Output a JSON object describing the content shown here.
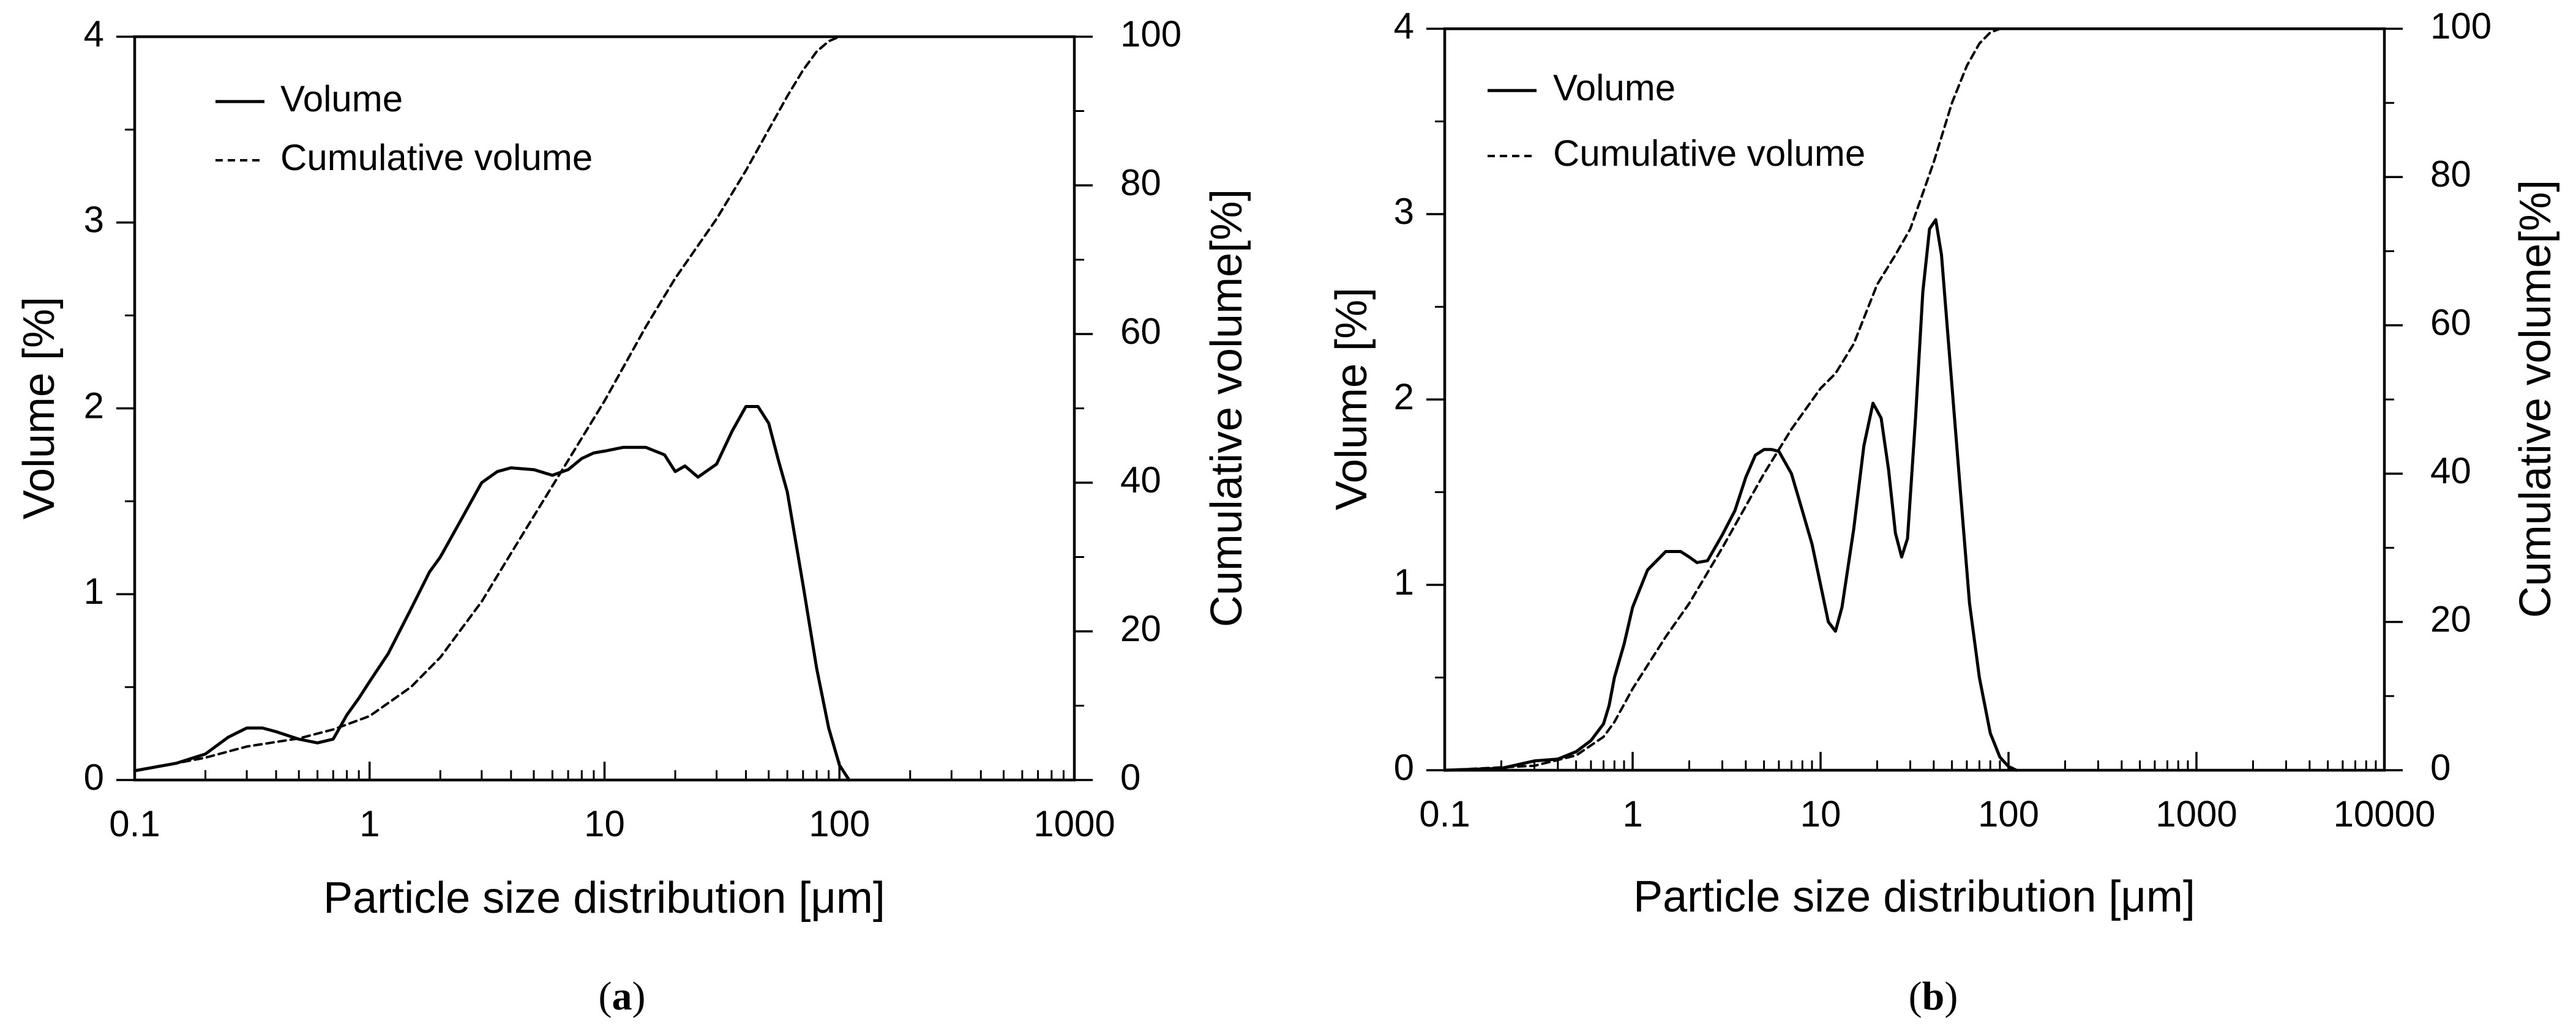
{
  "chart_data": [
    {
      "id": "a",
      "type": "line",
      "panel_label": "a",
      "xlabel": "Particle size distribution [μm]",
      "ylabel": "Volume [%]",
      "y2label": "Cumulative volume[%]",
      "xscale": "log",
      "xlim": [
        0.1,
        1000
      ],
      "ylim": [
        0,
        4
      ],
      "y2lim": [
        0,
        100
      ],
      "x_ticks": [
        "0.1",
        "1",
        "10",
        "100",
        "1000"
      ],
      "y_ticks": [
        "0",
        "1",
        "2",
        "3",
        "4"
      ],
      "y2_ticks": [
        "0",
        "20",
        "40",
        "60",
        "80",
        "100"
      ],
      "legend": {
        "position": "top-left",
        "entries": [
          "Volume",
          "Cumulative volume"
        ]
      },
      "series": [
        {
          "name": "Volume",
          "axis": "left",
          "style": "solid",
          "x": [
            0.1,
            0.15,
            0.2,
            0.25,
            0.3,
            0.35,
            0.4,
            0.5,
            0.6,
            0.7,
            0.8,
            0.9,
            1.0,
            1.2,
            1.5,
            1.8,
            2.0,
            2.5,
            3.0,
            3.5,
            4.0,
            5.0,
            6.0,
            7.0,
            8.0,
            9.0,
            10,
            12,
            15,
            18,
            20,
            22,
            25,
            30,
            35,
            40,
            45,
            50,
            55,
            60,
            70,
            80,
            90,
            100,
            110
          ],
          "values": [
            0.05,
            0.09,
            0.14,
            0.23,
            0.28,
            0.28,
            0.26,
            0.22,
            0.2,
            0.22,
            0.35,
            0.44,
            0.53,
            0.68,
            0.92,
            1.12,
            1.2,
            1.42,
            1.6,
            1.66,
            1.68,
            1.67,
            1.64,
            1.67,
            1.73,
            1.76,
            1.77,
            1.79,
            1.79,
            1.75,
            1.66,
            1.69,
            1.63,
            1.7,
            1.88,
            2.01,
            2.01,
            1.92,
            1.72,
            1.55,
            1.05,
            0.6,
            0.28,
            0.08,
            0.0
          ]
        },
        {
          "name": "Cumulative volume",
          "axis": "right",
          "style": "dashed",
          "x": [
            0.1,
            0.2,
            0.3,
            0.5,
            0.7,
            1.0,
            1.5,
            2.0,
            3.0,
            4.0,
            5.0,
            7.0,
            10,
            15,
            20,
            30,
            40,
            50,
            60,
            70,
            80,
            90,
            100,
            150,
            200,
            1000
          ],
          "values": [
            1.2,
            3.0,
            4.5,
            5.6,
            6.8,
            8.6,
            12.5,
            16.5,
            24,
            30.5,
            35.5,
            43,
            51,
            61,
            67.5,
            75.5,
            82,
            87.5,
            92,
            95.5,
            98,
            99.4,
            100,
            100,
            100,
            100
          ]
        }
      ]
    },
    {
      "id": "b",
      "type": "line",
      "panel_label": "b",
      "xlabel": "Particle size distribution [μm]",
      "ylabel": "Volume [%]",
      "y2label": "Cumulative volume[%]",
      "xscale": "log",
      "xlim": [
        0.1,
        10000
      ],
      "ylim": [
        0,
        4
      ],
      "y2lim": [
        0,
        100
      ],
      "x_ticks": [
        "0.1",
        "1",
        "10",
        "100",
        "1000",
        "10000"
      ],
      "y_ticks": [
        "0",
        "1",
        "2",
        "3",
        "4"
      ],
      "y2_ticks": [
        "0",
        "20",
        "40",
        "60",
        "80",
        "100"
      ],
      "legend": {
        "position": "top-left",
        "entries": [
          "Volume",
          "Cumulative volume"
        ]
      },
      "series": [
        {
          "name": "Volume",
          "axis": "left",
          "style": "solid",
          "x": [
            0.1,
            0.2,
            0.3,
            0.4,
            0.5,
            0.6,
            0.7,
            0.75,
            0.8,
            0.9,
            1.0,
            1.2,
            1.5,
            1.8,
            2.0,
            2.2,
            2.5,
            3.0,
            3.5,
            4.0,
            4.5,
            5.0,
            5.5,
            6.0,
            7.0,
            8.0,
            9.0,
            10,
            11,
            12,
            13,
            15,
            17,
            19,
            21,
            23,
            25,
            27,
            29,
            32,
            35,
            38,
            41,
            44,
            48,
            55,
            62,
            70,
            80,
            90,
            100,
            110
          ],
          "values": [
            0.0,
            0.01,
            0.05,
            0.06,
            0.1,
            0.16,
            0.25,
            0.35,
            0.5,
            0.68,
            0.88,
            1.08,
            1.18,
            1.18,
            1.15,
            1.12,
            1.13,
            1.27,
            1.4,
            1.58,
            1.7,
            1.73,
            1.73,
            1.72,
            1.6,
            1.4,
            1.22,
            1.0,
            0.8,
            0.75,
            0.88,
            1.3,
            1.75,
            1.98,
            1.9,
            1.62,
            1.28,
            1.15,
            1.25,
            1.9,
            2.58,
            2.92,
            2.97,
            2.78,
            2.3,
            1.55,
            0.9,
            0.5,
            0.2,
            0.07,
            0.02,
            0.0
          ]
        },
        {
          "name": "Cumulative volume",
          "axis": "right",
          "style": "dashed",
          "x": [
            0.1,
            0.3,
            0.5,
            0.7,
            0.8,
            1.0,
            1.5,
            2.0,
            3.0,
            5.0,
            7.0,
            10,
            12,
            15,
            20,
            25,
            30,
            40,
            50,
            60,
            70,
            80,
            90,
            100,
            200,
            10000
          ],
          "values": [
            0,
            0.6,
            2,
            4.5,
            6.5,
            11,
            18,
            22.5,
            30,
            40,
            46,
            51.5,
            53.5,
            57.5,
            65.5,
            69.5,
            73,
            82,
            90,
            95,
            98,
            99.5,
            100,
            100,
            100,
            100
          ]
        }
      ]
    }
  ]
}
